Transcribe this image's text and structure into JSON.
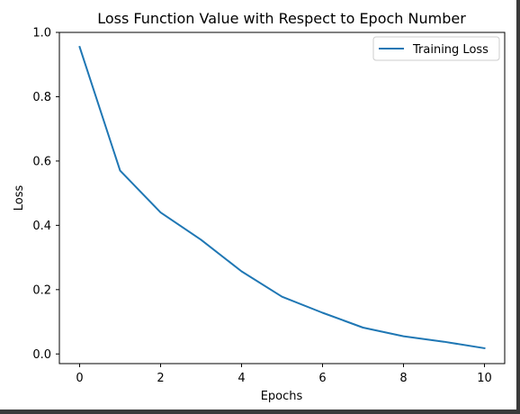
{
  "chart_data": {
    "type": "line",
    "title": "Loss Function Value with Respect to Epoch Number",
    "xlabel": "Epochs",
    "ylabel": "Loss",
    "xlim": [
      -0.5,
      10.5
    ],
    "ylim": [
      -0.03,
      1.0
    ],
    "xticks": [
      0,
      2,
      4,
      6,
      8,
      10
    ],
    "xtick_labels": [
      "0",
      "2",
      "4",
      "6",
      "8",
      "10"
    ],
    "yticks": [
      0.0,
      0.2,
      0.4,
      0.6,
      0.8,
      1.0
    ],
    "ytick_labels": [
      "0.0",
      "0.2",
      "0.4",
      "0.6",
      "0.8",
      "1.0"
    ],
    "grid": false,
    "legend_position": "top-right",
    "series": [
      {
        "name": "Training Loss",
        "color": "#1f77b4",
        "x": [
          0,
          1,
          2,
          3,
          4,
          5,
          6,
          7,
          8,
          9,
          10
        ],
        "y": [
          0.955,
          0.57,
          0.44,
          0.355,
          0.257,
          0.178,
          0.128,
          0.082,
          0.055,
          0.038,
          0.018
        ]
      }
    ]
  }
}
